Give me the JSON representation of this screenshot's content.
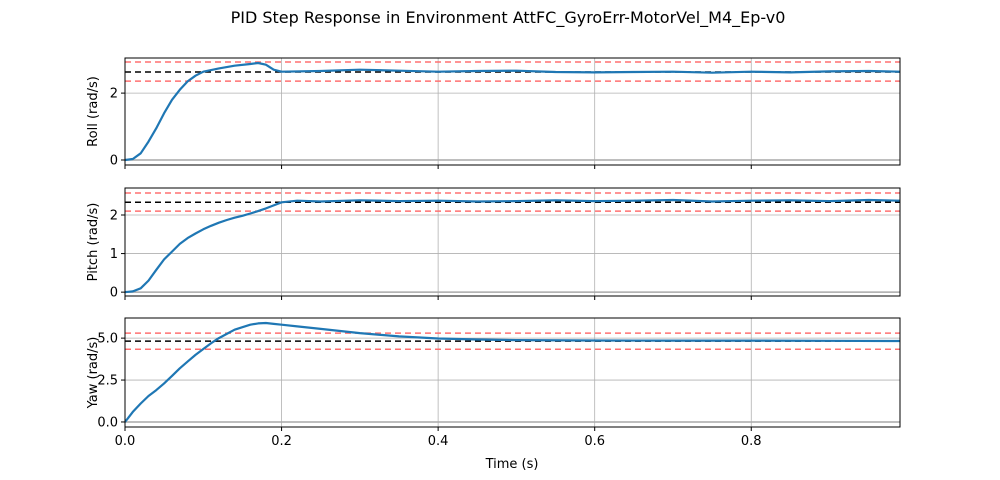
{
  "chart_data": {
    "title": "PID Step Response in Environment AttFC_GyroErr-MotorVel_M4_Ep-v0",
    "xlabel": "Time (s)",
    "xlim": [
      0,
      0.99
    ],
    "xticks": [
      0.0,
      0.2,
      0.4,
      0.6,
      0.8
    ],
    "xtick_labels": [
      "0.0",
      "0.2",
      "0.4",
      "0.6",
      "0.8"
    ],
    "grid": true,
    "colors": {
      "response": "#1f77b4",
      "setpoint": "#000000",
      "tolerance": "#ff7070",
      "zero": "#a9a9a9"
    },
    "subplots": [
      {
        "type": "line",
        "ylabel": "Roll (rad/s)",
        "ylim": [
          -0.15,
          3.05
        ],
        "yticks": [
          0,
          2
        ],
        "ytick_labels": [
          "0",
          "2"
        ],
        "setpoint": 2.63,
        "tolerance_upper": 2.93,
        "tolerance_lower": 2.36,
        "response": {
          "x": [
            0.0,
            0.01,
            0.02,
            0.03,
            0.04,
            0.05,
            0.06,
            0.07,
            0.08,
            0.09,
            0.1,
            0.12,
            0.14,
            0.16,
            0.17,
            0.18,
            0.19,
            0.2,
            0.25,
            0.3,
            0.35,
            0.4,
            0.45,
            0.5,
            0.55,
            0.6,
            0.65,
            0.7,
            0.75,
            0.8,
            0.85,
            0.9,
            0.95,
            0.99
          ],
          "y": [
            0.0,
            0.03,
            0.2,
            0.55,
            0.95,
            1.4,
            1.8,
            2.1,
            2.35,
            2.52,
            2.64,
            2.74,
            2.82,
            2.87,
            2.9,
            2.85,
            2.7,
            2.64,
            2.66,
            2.7,
            2.67,
            2.64,
            2.66,
            2.67,
            2.63,
            2.62,
            2.63,
            2.64,
            2.61,
            2.64,
            2.62,
            2.65,
            2.66,
            2.64
          ]
        }
      },
      {
        "type": "line",
        "ylabel": "Pitch (rad/s)",
        "ylim": [
          -0.1,
          2.7
        ],
        "yticks": [
          0,
          1,
          2
        ],
        "ytick_labels": [
          "0",
          "1",
          "2"
        ],
        "setpoint": 2.33,
        "tolerance_upper": 2.57,
        "tolerance_lower": 2.1,
        "response": {
          "x": [
            0.0,
            0.01,
            0.02,
            0.03,
            0.04,
            0.05,
            0.06,
            0.07,
            0.08,
            0.09,
            0.1,
            0.11,
            0.12,
            0.13,
            0.14,
            0.15,
            0.16,
            0.17,
            0.18,
            0.19,
            0.2,
            0.22,
            0.25,
            0.3,
            0.35,
            0.4,
            0.45,
            0.5,
            0.55,
            0.6,
            0.65,
            0.7,
            0.75,
            0.8,
            0.85,
            0.9,
            0.95,
            0.99
          ],
          "y": [
            0.0,
            0.02,
            0.1,
            0.3,
            0.58,
            0.85,
            1.05,
            1.25,
            1.4,
            1.52,
            1.63,
            1.72,
            1.8,
            1.87,
            1.93,
            1.98,
            2.04,
            2.1,
            2.17,
            2.25,
            2.33,
            2.37,
            2.35,
            2.38,
            2.36,
            2.37,
            2.35,
            2.36,
            2.38,
            2.36,
            2.37,
            2.39,
            2.35,
            2.37,
            2.38,
            2.36,
            2.39,
            2.37
          ]
        }
      },
      {
        "type": "line",
        "ylabel": "Yaw (rad/s)",
        "ylim": [
          -0.3,
          6.2
        ],
        "yticks": [
          0.0,
          2.5,
          5.0
        ],
        "ytick_labels": [
          "0.0",
          "2.5",
          "5.0"
        ],
        "setpoint": 4.82,
        "tolerance_upper": 5.3,
        "tolerance_lower": 4.34,
        "response": {
          "x": [
            0.0,
            0.01,
            0.02,
            0.03,
            0.04,
            0.05,
            0.06,
            0.07,
            0.08,
            0.09,
            0.1,
            0.11,
            0.12,
            0.13,
            0.14,
            0.15,
            0.16,
            0.17,
            0.18,
            0.19,
            0.2,
            0.22,
            0.25,
            0.3,
            0.35,
            0.4,
            0.45,
            0.5,
            0.6,
            0.7,
            0.8,
            0.9,
            0.99
          ],
          "y": [
            0.0,
            0.6,
            1.1,
            1.55,
            1.9,
            2.3,
            2.75,
            3.2,
            3.6,
            4.0,
            4.35,
            4.7,
            5.0,
            5.25,
            5.5,
            5.65,
            5.8,
            5.88,
            5.9,
            5.85,
            5.8,
            5.7,
            5.55,
            5.3,
            5.1,
            4.98,
            4.92,
            4.88,
            4.86,
            4.85,
            4.85,
            4.84,
            4.83
          ]
        }
      }
    ]
  }
}
